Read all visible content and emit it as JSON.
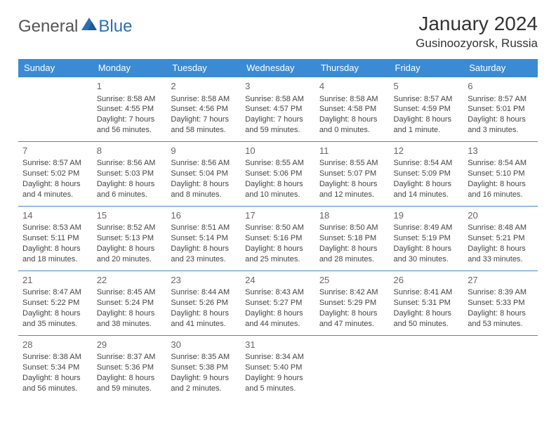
{
  "logo": {
    "textGray": "General",
    "textBlue": "Blue"
  },
  "title": "January 2024",
  "location": "Gusinoozyorsk, Russia",
  "colors": {
    "headerBg": "#3b8bd4",
    "headerText": "#ffffff",
    "cellBorder": "#3b8bd4",
    "logoBlue": "#2a6fb5",
    "logoGray": "#555555",
    "bodyText": "#444444"
  },
  "weekdays": [
    "Sunday",
    "Monday",
    "Tuesday",
    "Wednesday",
    "Thursday",
    "Friday",
    "Saturday"
  ],
  "startOffset": 1,
  "days": [
    {
      "n": 1,
      "sunrise": "8:58 AM",
      "sunset": "4:55 PM",
      "daylight": "7 hours and 56 minutes."
    },
    {
      "n": 2,
      "sunrise": "8:58 AM",
      "sunset": "4:56 PM",
      "daylight": "7 hours and 58 minutes."
    },
    {
      "n": 3,
      "sunrise": "8:58 AM",
      "sunset": "4:57 PM",
      "daylight": "7 hours and 59 minutes."
    },
    {
      "n": 4,
      "sunrise": "8:58 AM",
      "sunset": "4:58 PM",
      "daylight": "8 hours and 0 minutes."
    },
    {
      "n": 5,
      "sunrise": "8:57 AM",
      "sunset": "4:59 PM",
      "daylight": "8 hours and 1 minute."
    },
    {
      "n": 6,
      "sunrise": "8:57 AM",
      "sunset": "5:01 PM",
      "daylight": "8 hours and 3 minutes."
    },
    {
      "n": 7,
      "sunrise": "8:57 AM",
      "sunset": "5:02 PM",
      "daylight": "8 hours and 4 minutes."
    },
    {
      "n": 8,
      "sunrise": "8:56 AM",
      "sunset": "5:03 PM",
      "daylight": "8 hours and 6 minutes."
    },
    {
      "n": 9,
      "sunrise": "8:56 AM",
      "sunset": "5:04 PM",
      "daylight": "8 hours and 8 minutes."
    },
    {
      "n": 10,
      "sunrise": "8:55 AM",
      "sunset": "5:06 PM",
      "daylight": "8 hours and 10 minutes."
    },
    {
      "n": 11,
      "sunrise": "8:55 AM",
      "sunset": "5:07 PM",
      "daylight": "8 hours and 12 minutes."
    },
    {
      "n": 12,
      "sunrise": "8:54 AM",
      "sunset": "5:09 PM",
      "daylight": "8 hours and 14 minutes."
    },
    {
      "n": 13,
      "sunrise": "8:54 AM",
      "sunset": "5:10 PM",
      "daylight": "8 hours and 16 minutes."
    },
    {
      "n": 14,
      "sunrise": "8:53 AM",
      "sunset": "5:11 PM",
      "daylight": "8 hours and 18 minutes."
    },
    {
      "n": 15,
      "sunrise": "8:52 AM",
      "sunset": "5:13 PM",
      "daylight": "8 hours and 20 minutes."
    },
    {
      "n": 16,
      "sunrise": "8:51 AM",
      "sunset": "5:14 PM",
      "daylight": "8 hours and 23 minutes."
    },
    {
      "n": 17,
      "sunrise": "8:50 AM",
      "sunset": "5:16 PM",
      "daylight": "8 hours and 25 minutes."
    },
    {
      "n": 18,
      "sunrise": "8:50 AM",
      "sunset": "5:18 PM",
      "daylight": "8 hours and 28 minutes."
    },
    {
      "n": 19,
      "sunrise": "8:49 AM",
      "sunset": "5:19 PM",
      "daylight": "8 hours and 30 minutes."
    },
    {
      "n": 20,
      "sunrise": "8:48 AM",
      "sunset": "5:21 PM",
      "daylight": "8 hours and 33 minutes."
    },
    {
      "n": 21,
      "sunrise": "8:47 AM",
      "sunset": "5:22 PM",
      "daylight": "8 hours and 35 minutes."
    },
    {
      "n": 22,
      "sunrise": "8:45 AM",
      "sunset": "5:24 PM",
      "daylight": "8 hours and 38 minutes."
    },
    {
      "n": 23,
      "sunrise": "8:44 AM",
      "sunset": "5:26 PM",
      "daylight": "8 hours and 41 minutes."
    },
    {
      "n": 24,
      "sunrise": "8:43 AM",
      "sunset": "5:27 PM",
      "daylight": "8 hours and 44 minutes."
    },
    {
      "n": 25,
      "sunrise": "8:42 AM",
      "sunset": "5:29 PM",
      "daylight": "8 hours and 47 minutes."
    },
    {
      "n": 26,
      "sunrise": "8:41 AM",
      "sunset": "5:31 PM",
      "daylight": "8 hours and 50 minutes."
    },
    {
      "n": 27,
      "sunrise": "8:39 AM",
      "sunset": "5:33 PM",
      "daylight": "8 hours and 53 minutes."
    },
    {
      "n": 28,
      "sunrise": "8:38 AM",
      "sunset": "5:34 PM",
      "daylight": "8 hours and 56 minutes."
    },
    {
      "n": 29,
      "sunrise": "8:37 AM",
      "sunset": "5:36 PM",
      "daylight": "8 hours and 59 minutes."
    },
    {
      "n": 30,
      "sunrise": "8:35 AM",
      "sunset": "5:38 PM",
      "daylight": "9 hours and 2 minutes."
    },
    {
      "n": 31,
      "sunrise": "8:34 AM",
      "sunset": "5:40 PM",
      "daylight": "9 hours and 5 minutes."
    }
  ],
  "labels": {
    "sunrise": "Sunrise:",
    "sunset": "Sunset:",
    "daylight": "Daylight:"
  }
}
